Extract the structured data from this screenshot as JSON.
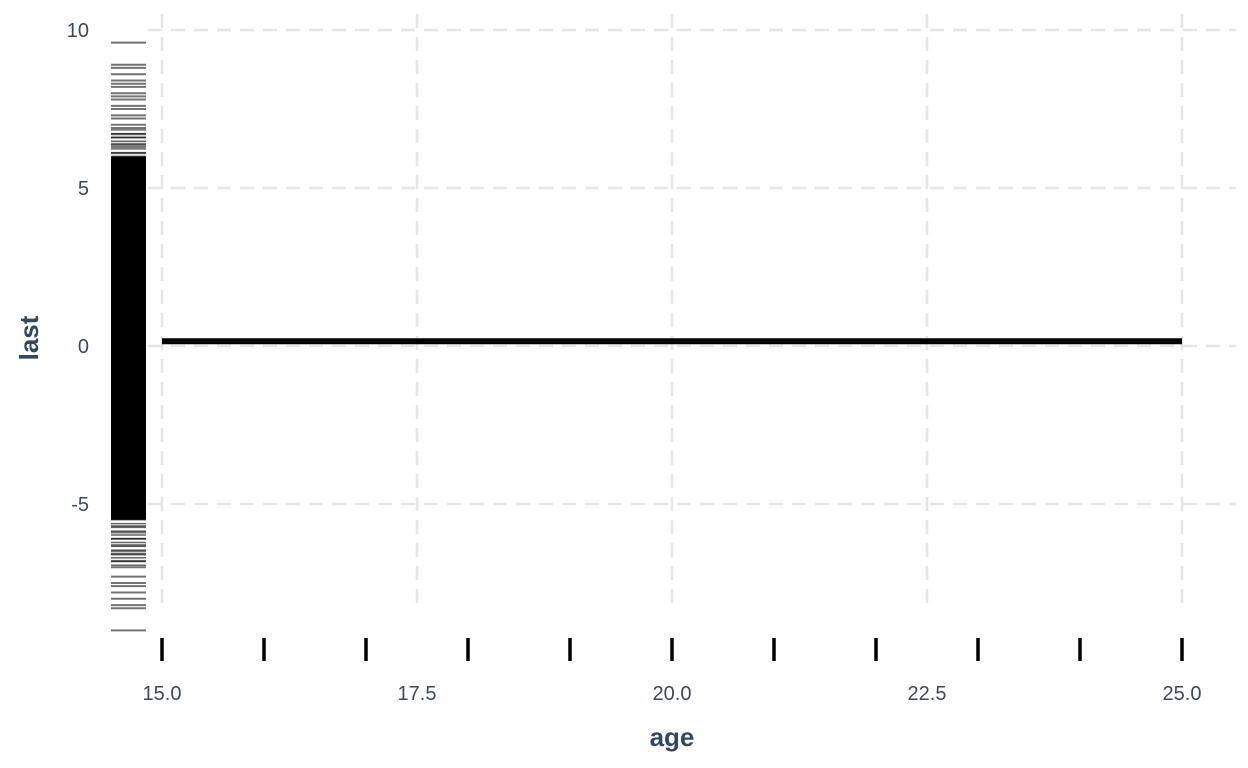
{
  "chart_data": {
    "type": "line",
    "title": "",
    "xlabel": "age",
    "ylabel": "last",
    "xlim": [
      14.7,
      25.5
    ],
    "ylim": [
      -9.2,
      10.2
    ],
    "x_ticks": [
      15.0,
      17.5,
      20.0,
      22.5,
      25.0
    ],
    "x_tick_labels": [
      "15.0",
      "17.5",
      "20.0",
      "22.5",
      "25.0"
    ],
    "y_ticks": [
      -5,
      0,
      5,
      10
    ],
    "y_tick_labels": [
      "-5",
      "0",
      "5",
      "10"
    ],
    "grid": true,
    "series": [
      {
        "x": [
          15,
          25
        ],
        "y": [
          0.15,
          0.15
        ]
      }
    ],
    "x_rug": [
      15,
      16,
      17,
      18,
      19,
      20,
      21,
      22,
      23,
      24,
      25
    ],
    "y_rug": {
      "range": [
        -9.0,
        9.6
      ],
      "dense_range": [
        -5.5,
        6.0
      ],
      "outlier_values": [
        9.6,
        8.9,
        8.8,
        8.6,
        8.4,
        8.3,
        8.2,
        8.0,
        7.9,
        7.8,
        7.6,
        7.5,
        7.3,
        7.2,
        7.0,
        6.9,
        6.7,
        6.6,
        6.4,
        6.3,
        6.1,
        -5.7,
        -5.9,
        -6.1,
        -6.3,
        -6.5,
        -6.6,
        -6.8,
        -7.0,
        -7.3,
        -7.5,
        -7.6,
        -7.8,
        -8.0,
        -8.2,
        -8.3,
        -9.0
      ]
    }
  }
}
